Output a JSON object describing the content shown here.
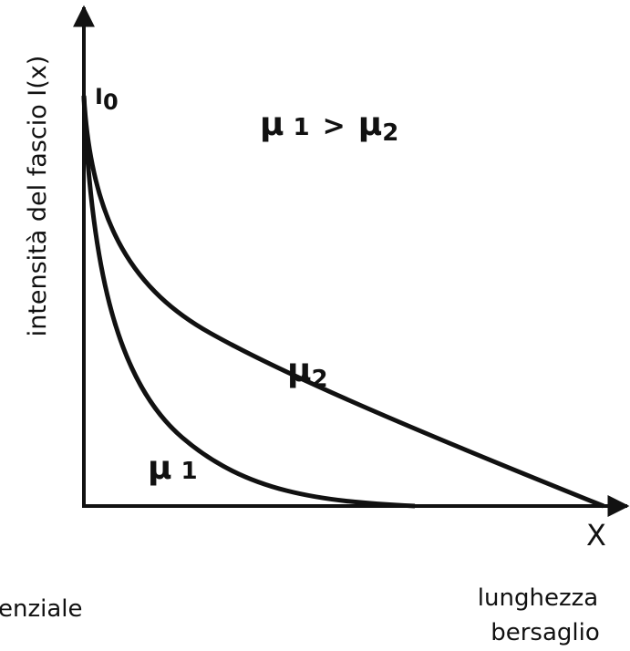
{
  "y_axis_label": "intensità del fascio I(x)",
  "x_axis_label": "X",
  "initial_intensity": {
    "symbol": "I",
    "subscript": "0"
  },
  "relation": {
    "left": "μ",
    "left_index": "1",
    "operator": ">",
    "right": "μ",
    "right_index": "2"
  },
  "curve_2_label": {
    "symbol": "μ",
    "subscript": "2"
  },
  "curve_1_label": {
    "symbol": "μ",
    "index": "1"
  },
  "left_caption": "enziale",
  "right_caption": [
    "lunghezza",
    "bersaglio"
  ]
}
